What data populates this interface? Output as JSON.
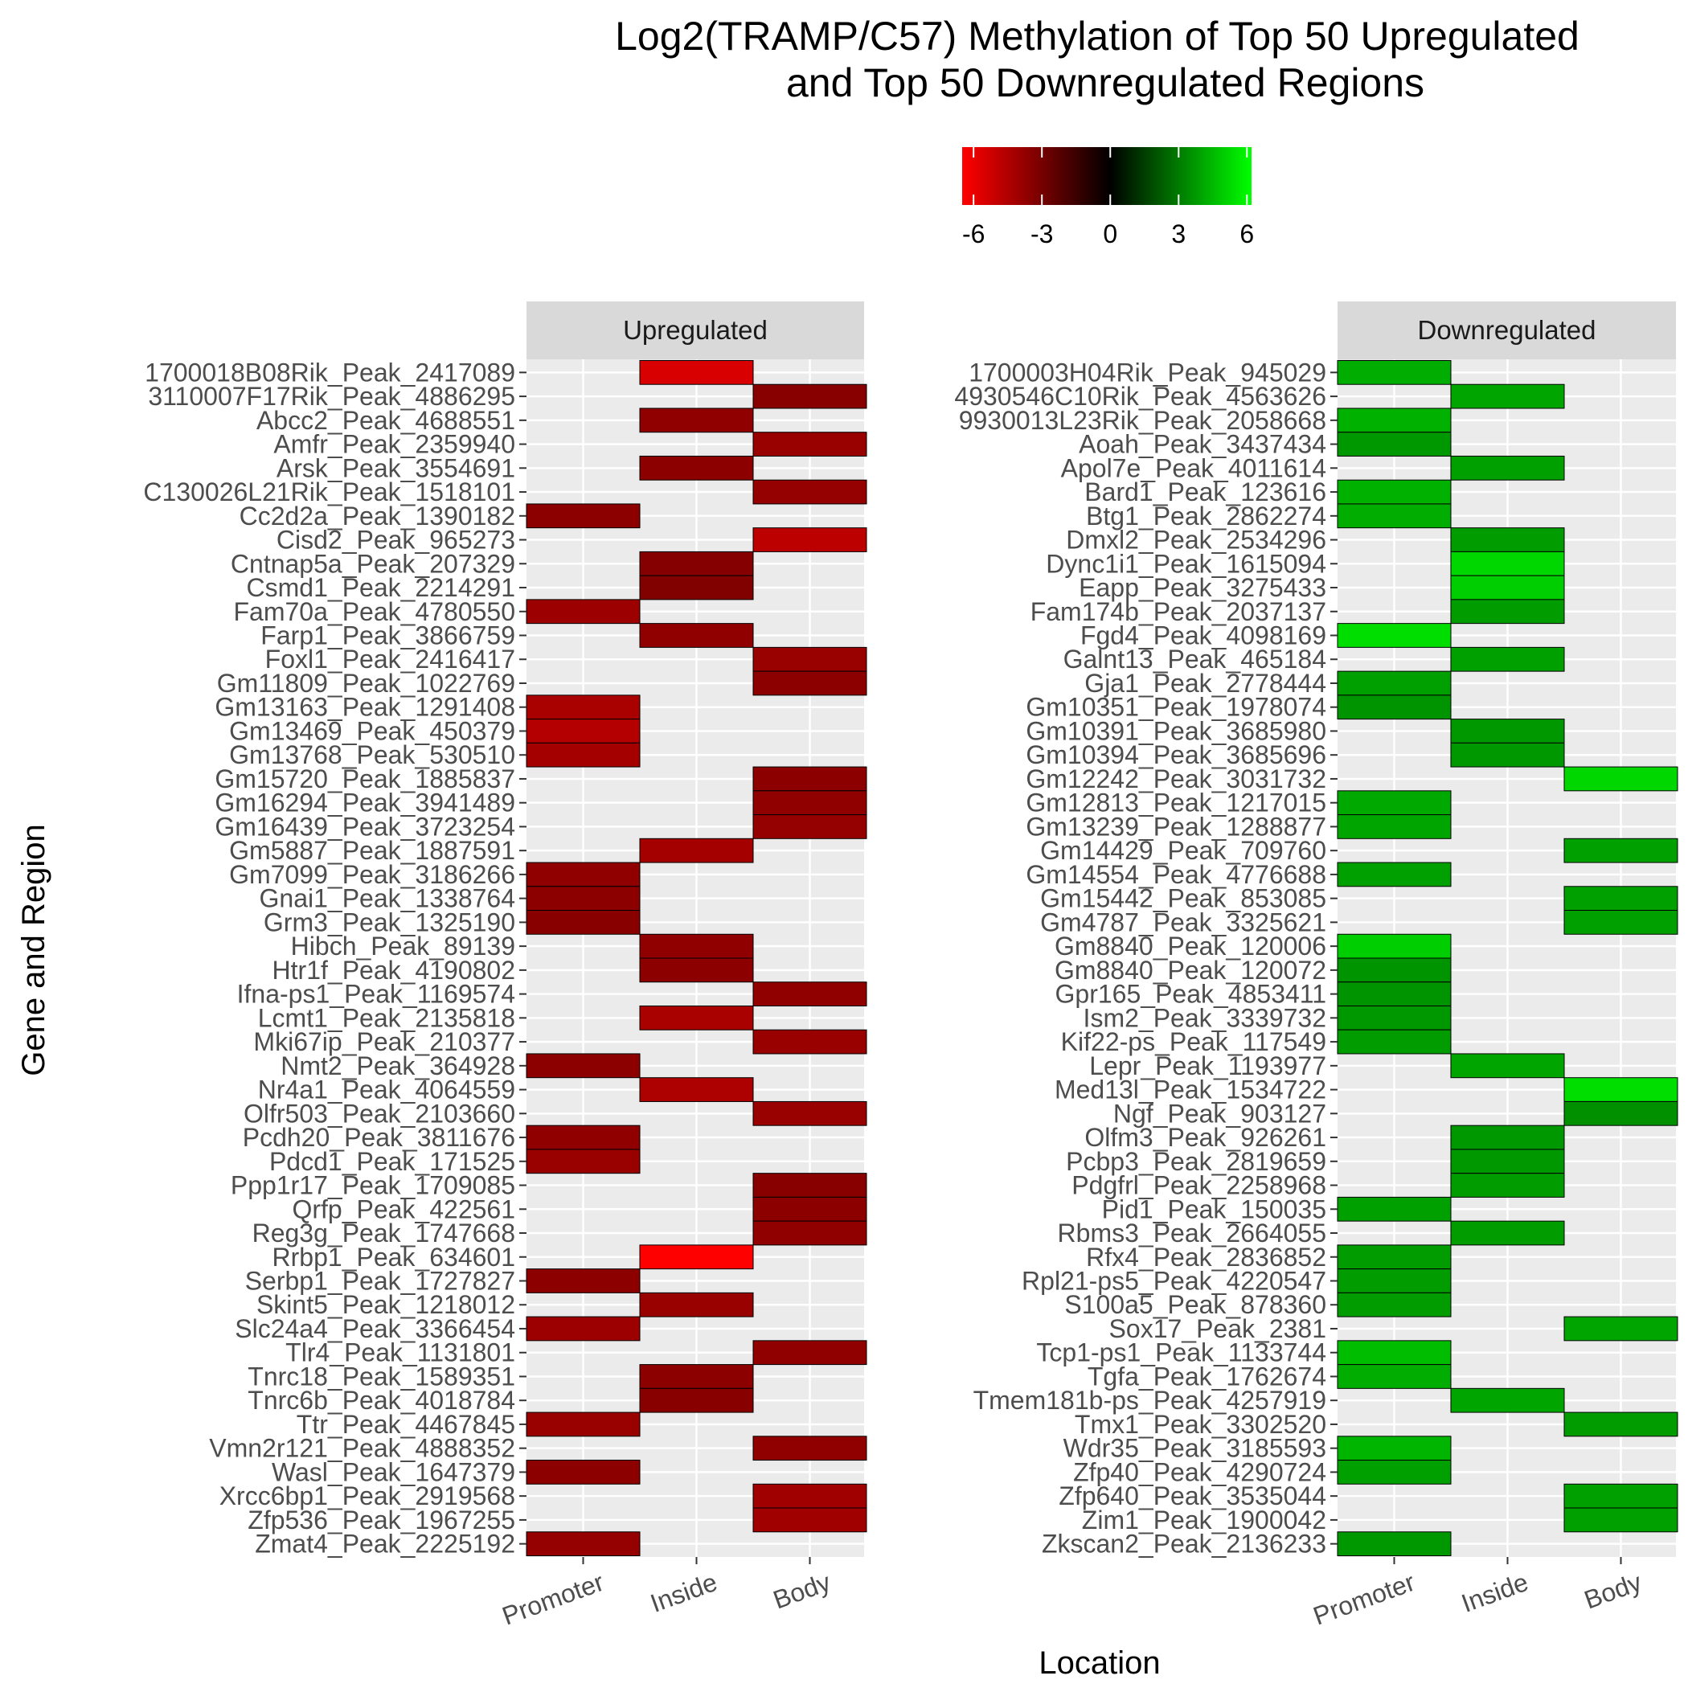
{
  "chart_data": {
    "type": "heatmap",
    "title": [
      "Log2(TRAMP/C57) Methylation of Top 50 Upregulated",
      "and Top 50 Downregulated Regions"
    ],
    "xlabel": "Location",
    "ylabel": "Gene  and Region",
    "x_categories": [
      "Promoter",
      "Inside",
      "Body"
    ],
    "legend": {
      "ticks": [
        -6,
        -3,
        0,
        3,
        6
      ],
      "range": [
        -6.5,
        6.2
      ],
      "colors": {
        "low": "#ff0000",
        "mid": "#000000",
        "high": "#00ff00"
      },
      "placement": "top"
    },
    "grid": true,
    "panels": [
      {
        "name": "Upregulated",
        "cells": [
          {
            "gene": "1700018B08Rik_Peak_2417089",
            "location": "Inside",
            "value": -5.5
          },
          {
            "gene": "3110007F17Rik_Peak_4886295",
            "location": "Body",
            "value": -3.5
          },
          {
            "gene": "Abcc2_Peak_4688551",
            "location": "Inside",
            "value": -3.7
          },
          {
            "gene": "Amfr_Peak_2359940",
            "location": "Body",
            "value": -3.9
          },
          {
            "gene": "Arsk_Peak_3554691",
            "location": "Inside",
            "value": -3.6
          },
          {
            "gene": "C130026L21Rik_Peak_1518101",
            "location": "Body",
            "value": -3.8
          },
          {
            "gene": "Cc2d2a_Peak_1390182",
            "location": "Promoter",
            "value": -3.6
          },
          {
            "gene": "Cisd2_Peak_965273",
            "location": "Body",
            "value": -4.8
          },
          {
            "gene": "Cntnap5a_Peak_207329",
            "location": "Inside",
            "value": -3.4
          },
          {
            "gene": "Csmd1_Peak_2214291",
            "location": "Inside",
            "value": -3.3
          },
          {
            "gene": "Fam70a_Peak_4780550",
            "location": "Promoter",
            "value": -4.0
          },
          {
            "gene": "Farp1_Peak_3866759",
            "location": "Inside",
            "value": -3.7
          },
          {
            "gene": "Foxl1_Peak_2416417",
            "location": "Body",
            "value": -3.9
          },
          {
            "gene": "Gm11809_Peak_1022769",
            "location": "Body",
            "value": -3.6
          },
          {
            "gene": "Gm13163_Peak_1291408",
            "location": "Promoter",
            "value": -4.3
          },
          {
            "gene": "Gm13469_Peak_450379",
            "location": "Promoter",
            "value": -4.6
          },
          {
            "gene": "Gm13768_Peak_530510",
            "location": "Promoter",
            "value": -4.2
          },
          {
            "gene": "Gm15720_Peak_1885837",
            "location": "Body",
            "value": -3.6
          },
          {
            "gene": "Gm16294_Peak_3941489",
            "location": "Body",
            "value": -3.7
          },
          {
            "gene": "Gm16439_Peak_3723254",
            "location": "Body",
            "value": -3.8
          },
          {
            "gene": "Gm5887_Peak_1887591",
            "location": "Inside",
            "value": -4.2
          },
          {
            "gene": "Gm7099_Peak_3186266",
            "location": "Promoter",
            "value": -3.7
          },
          {
            "gene": "Gnai1_Peak_1338764",
            "location": "Promoter",
            "value": -3.6
          },
          {
            "gene": "Grm3_Peak_1325190",
            "location": "Promoter",
            "value": -3.5
          },
          {
            "gene": "Hibch_Peak_89139",
            "location": "Inside",
            "value": -3.7
          },
          {
            "gene": "Htr1f_Peak_4190802",
            "location": "Inside",
            "value": -3.6
          },
          {
            "gene": "Ifna-ps1_Peak_1169574",
            "location": "Body",
            "value": -3.7
          },
          {
            "gene": "Lcmt1_Peak_2135818",
            "location": "Inside",
            "value": -4.3
          },
          {
            "gene": "Mki67ip_Peak_210377",
            "location": "Body",
            "value": -3.9
          },
          {
            "gene": "Nmt2_Peak_364928",
            "location": "Promoter",
            "value": -3.6
          },
          {
            "gene": "Nr4a1_Peak_4064559",
            "location": "Inside",
            "value": -4.4
          },
          {
            "gene": "Olfr503_Peak_2103660",
            "location": "Body",
            "value": -3.9
          },
          {
            "gene": "Pcdh20_Peak_3811676",
            "location": "Promoter",
            "value": -3.7
          },
          {
            "gene": "Pdcd1_Peak_171525",
            "location": "Promoter",
            "value": -3.9
          },
          {
            "gene": "Ppp1r17_Peak_1709085",
            "location": "Body",
            "value": -3.5
          },
          {
            "gene": "Qrfp_Peak_422561",
            "location": "Body",
            "value": -3.6
          },
          {
            "gene": "Reg3g_Peak_1747668",
            "location": "Body",
            "value": -3.7
          },
          {
            "gene": "Rrbp1_Peak_634601",
            "location": "Inside",
            "value": -6.5
          },
          {
            "gene": "Serbp1_Peak_1727827",
            "location": "Promoter",
            "value": -3.6
          },
          {
            "gene": "Skint5_Peak_1218012",
            "location": "Inside",
            "value": -3.9
          },
          {
            "gene": "Slc24a4_Peak_3366454",
            "location": "Promoter",
            "value": -4.0
          },
          {
            "gene": "Tlr4_Peak_1131801",
            "location": "Body",
            "value": -3.7
          },
          {
            "gene": "Tnrc18_Peak_1589351",
            "location": "Inside",
            "value": -3.6
          },
          {
            "gene": "Tnrc6b_Peak_4018784",
            "location": "Inside",
            "value": -3.5
          },
          {
            "gene": "Ttr_Peak_4467845",
            "location": "Promoter",
            "value": -3.9
          },
          {
            "gene": "Vmn2r121_Peak_4888352",
            "location": "Body",
            "value": -3.7
          },
          {
            "gene": "Wasl_Peak_1647379",
            "location": "Promoter",
            "value": -3.6
          },
          {
            "gene": "Xrcc6bp1_Peak_2919568",
            "location": "Body",
            "value": -4.1
          },
          {
            "gene": "Zfp536_Peak_1967255",
            "location": "Body",
            "value": -4.1
          },
          {
            "gene": "Zmat4_Peak_2225192",
            "location": "Promoter",
            "value": -3.8
          }
        ]
      },
      {
        "name": "Downregulated",
        "cells": [
          {
            "gene": "1700003H04Rik_Peak_945029",
            "location": "Promoter",
            "value": 4.2
          },
          {
            "gene": "4930546C10Rik_Peak_4563626",
            "location": "Inside",
            "value": 4.0
          },
          {
            "gene": "9930013L23Rik_Peak_2058668",
            "location": "Promoter",
            "value": 4.3
          },
          {
            "gene": "Aoah_Peak_3437434",
            "location": "Promoter",
            "value": 3.7
          },
          {
            "gene": "Apol7e_Peak_4011614",
            "location": "Inside",
            "value": 3.9
          },
          {
            "gene": "Bard1_Peak_123616",
            "location": "Promoter",
            "value": 4.3
          },
          {
            "gene": "Btg1_Peak_2862274",
            "location": "Promoter",
            "value": 4.2
          },
          {
            "gene": "Dmxl2_Peak_2534296",
            "location": "Inside",
            "value": 3.8
          },
          {
            "gene": "Dync1i1_Peak_1615094",
            "location": "Inside",
            "value": 5.2
          },
          {
            "gene": "Eapp_Peak_3275433",
            "location": "Inside",
            "value": 5.0
          },
          {
            "gene": "Fam174b_Peak_2037137",
            "location": "Inside",
            "value": 3.8
          },
          {
            "gene": "Fgd4_Peak_4098169",
            "location": "Promoter",
            "value": 5.4
          },
          {
            "gene": "Galnt13_Peak_465184",
            "location": "Inside",
            "value": 3.9
          },
          {
            "gene": "Gja1_Peak_2778444",
            "location": "Promoter",
            "value": 3.9
          },
          {
            "gene": "Gm10351_Peak_1978074",
            "location": "Promoter",
            "value": 3.6
          },
          {
            "gene": "Gm10391_Peak_3685980",
            "location": "Inside",
            "value": 3.7
          },
          {
            "gene": "Gm10394_Peak_3685696",
            "location": "Inside",
            "value": 3.7
          },
          {
            "gene": "Gm12242_Peak_3031732",
            "location": "Body",
            "value": 5.2
          },
          {
            "gene": "Gm12813_Peak_1217015",
            "location": "Promoter",
            "value": 4.1
          },
          {
            "gene": "Gm13239_Peak_1288877",
            "location": "Promoter",
            "value": 4.0
          },
          {
            "gene": "Gm14429_Peak_709760",
            "location": "Body",
            "value": 3.9
          },
          {
            "gene": "Gm14554_Peak_4776688",
            "location": "Promoter",
            "value": 3.9
          },
          {
            "gene": "Gm15442_Peak_853085",
            "location": "Body",
            "value": 3.9
          },
          {
            "gene": "Gm4787_Peak_3325621",
            "location": "Body",
            "value": 3.9
          },
          {
            "gene": "Gm8840_Peak_120006",
            "location": "Promoter",
            "value": 5.0
          },
          {
            "gene": "Gm8840_Peak_120072",
            "location": "Promoter",
            "value": 3.6
          },
          {
            "gene": "Gpr165_Peak_4853411",
            "location": "Promoter",
            "value": 3.6
          },
          {
            "gene": "Ism2_Peak_3339732",
            "location": "Promoter",
            "value": 3.7
          },
          {
            "gene": "Kif22-ps_Peak_117549",
            "location": "Promoter",
            "value": 3.8
          },
          {
            "gene": "Lepr_Peak_1193977",
            "location": "Inside",
            "value": 4.0
          },
          {
            "gene": "Med13l_Peak_1534722",
            "location": "Body",
            "value": 5.4
          },
          {
            "gene": "Ngf_Peak_903127",
            "location": "Body",
            "value": 3.5
          },
          {
            "gene": "Olfm3_Peak_926261",
            "location": "Inside",
            "value": 3.7
          },
          {
            "gene": "Pcbp3_Peak_2819659",
            "location": "Inside",
            "value": 3.7
          },
          {
            "gene": "Pdgfrl_Peak_2258968",
            "location": "Inside",
            "value": 3.8
          },
          {
            "gene": "Pid1_Peak_150035",
            "location": "Promoter",
            "value": 3.9
          },
          {
            "gene": "Rbms3_Peak_2664055",
            "location": "Inside",
            "value": 3.8
          },
          {
            "gene": "Rfx4_Peak_2836852",
            "location": "Promoter",
            "value": 3.8
          },
          {
            "gene": "Rpl21-ps5_Peak_4220547",
            "location": "Promoter",
            "value": 3.8
          },
          {
            "gene": "S100a5_Peak_878360",
            "location": "Promoter",
            "value": 3.8
          },
          {
            "gene": "Sox17_Peak_2381",
            "location": "Body",
            "value": 4.0
          },
          {
            "gene": "Tcp1-ps1_Peak_1133744",
            "location": "Promoter",
            "value": 4.6
          },
          {
            "gene": "Tgfa_Peak_1762674",
            "location": "Promoter",
            "value": 4.2
          },
          {
            "gene": "Tmem181b-ps_Peak_4257919",
            "location": "Inside",
            "value": 4.0
          },
          {
            "gene": "Tmx1_Peak_3302520",
            "location": "Body",
            "value": 3.8
          },
          {
            "gene": "Wdr35_Peak_3185593",
            "location": "Promoter",
            "value": 4.4
          },
          {
            "gene": "Zfp40_Peak_4290724",
            "location": "Promoter",
            "value": 3.9
          },
          {
            "gene": "Zfp640_Peak_3535044",
            "location": "Body",
            "value": 3.9
          },
          {
            "gene": "Zim1_Peak_1900042",
            "location": "Body",
            "value": 3.9
          },
          {
            "gene": "Zkscan2_Peak_2136233",
            "location": "Promoter",
            "value": 3.7
          }
        ]
      }
    ]
  }
}
